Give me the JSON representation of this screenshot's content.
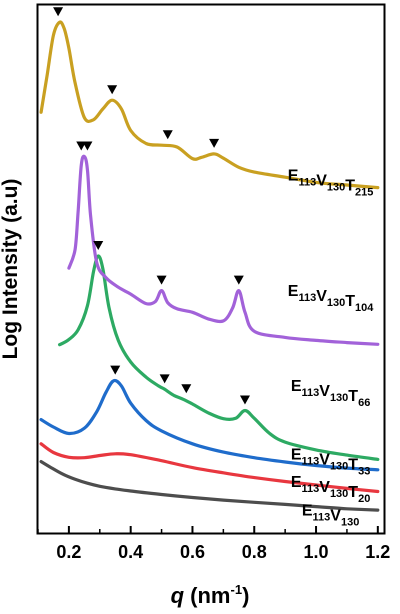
{
  "chart_data": {
    "type": "line",
    "xlabel": {
      "symbol": "q",
      "unit": "(nm",
      "unit_exp": "-1",
      "unit_close": ")"
    },
    "ylabel": "Log Intensity (a.u)",
    "xlim": [
      0.1,
      1.22
    ],
    "xticks": [
      "0.2",
      "0.4",
      "0.6",
      "0.8",
      "1.0",
      "1.2"
    ],
    "xtick_values": [
      0.2,
      0.4,
      0.6,
      0.8,
      1.0,
      1.2
    ],
    "y_scale": "arbitrary (offset curves)",
    "grid": false,
    "series": [
      {
        "name_parts": [
          [
            "E",
            ""
          ],
          [
            "113",
            "sub"
          ],
          [
            "V",
            ""
          ],
          [
            "130",
            "sub"
          ]
        ],
        "color": "#4d4d4d",
        "label_anchor": [
          0.95,
          4.0
        ],
        "points": [
          [
            0.11,
            16.5
          ],
          [
            0.14,
            15.2
          ],
          [
            0.18,
            13.6
          ],
          [
            0.22,
            12.4
          ],
          [
            0.26,
            11.5
          ],
          [
            0.3,
            10.8
          ],
          [
            0.35,
            10.2
          ],
          [
            0.4,
            9.7
          ],
          [
            0.5,
            8.9
          ],
          [
            0.6,
            8.2
          ],
          [
            0.7,
            7.6
          ],
          [
            0.8,
            7.1
          ],
          [
            0.9,
            6.6
          ],
          [
            1.0,
            6.1
          ],
          [
            1.1,
            5.6
          ],
          [
            1.2,
            5.3
          ]
        ],
        "peaks": []
      },
      {
        "name_parts": [
          [
            "E",
            ""
          ],
          [
            "113",
            "sub"
          ],
          [
            "V",
            ""
          ],
          [
            "130",
            "sub"
          ],
          [
            "T",
            ""
          ],
          [
            "20",
            "sub"
          ]
        ],
        "color": "#e8373f",
        "label_anchor": [
          0.95,
          10.6
        ],
        "points": [
          [
            0.11,
            20.6
          ],
          [
            0.15,
            18.6
          ],
          [
            0.2,
            17.5
          ],
          [
            0.25,
            17.4
          ],
          [
            0.3,
            17.9
          ],
          [
            0.35,
            18.3
          ],
          [
            0.4,
            18.1
          ],
          [
            0.5,
            16.7
          ],
          [
            0.6,
            15.1
          ],
          [
            0.7,
            13.9
          ],
          [
            0.8,
            12.8
          ],
          [
            0.9,
            11.9
          ],
          [
            1.0,
            11.1
          ],
          [
            1.1,
            10.3
          ],
          [
            1.2,
            9.6
          ]
        ],
        "peaks": []
      },
      {
        "name_parts": [
          [
            "E",
            ""
          ],
          [
            "113",
            "sub"
          ],
          [
            "V",
            ""
          ],
          [
            "130",
            "sub"
          ],
          [
            "T",
            ""
          ],
          [
            "33",
            "sub"
          ]
        ],
        "color": "#1f6ccb",
        "label_anchor": [
          0.95,
          17.0
        ],
        "points": [
          [
            0.11,
            26.2
          ],
          [
            0.15,
            24.5
          ],
          [
            0.2,
            23.0
          ],
          [
            0.25,
            24.2
          ],
          [
            0.29,
            28.0
          ],
          [
            0.32,
            32.5
          ],
          [
            0.345,
            35.2
          ],
          [
            0.37,
            34.0
          ],
          [
            0.4,
            30.0
          ],
          [
            0.45,
            26.0
          ],
          [
            0.5,
            23.6
          ],
          [
            0.6,
            20.6
          ],
          [
            0.7,
            18.7
          ],
          [
            0.8,
            17.4
          ],
          [
            0.9,
            16.4
          ],
          [
            1.0,
            15.6
          ],
          [
            1.1,
            15.0
          ],
          [
            1.2,
            14.6
          ]
        ],
        "peaks": [
          [
            0.35,
            35.2
          ]
        ]
      },
      {
        "name_parts": [
          [
            "E",
            ""
          ],
          [
            "113",
            "sub"
          ],
          [
            "V",
            ""
          ],
          [
            "130",
            "sub"
          ],
          [
            "T",
            ""
          ],
          [
            "66",
            "sub"
          ]
        ],
        "color": "#2daa63",
        "label_anchor": [
          0.95,
          32.8
        ],
        "points": [
          [
            0.17,
            43.5
          ],
          [
            0.2,
            44.7
          ],
          [
            0.23,
            47.0
          ],
          [
            0.26,
            52.5
          ],
          [
            0.28,
            60.5
          ],
          [
            0.295,
            64.0
          ],
          [
            0.31,
            61.0
          ],
          [
            0.33,
            52.0
          ],
          [
            0.36,
            44.5
          ],
          [
            0.4,
            39.5
          ],
          [
            0.45,
            36.0
          ],
          [
            0.49,
            34.0
          ],
          [
            0.51,
            33.2
          ],
          [
            0.54,
            31.8
          ],
          [
            0.57,
            30.9
          ],
          [
            0.6,
            29.8
          ],
          [
            0.65,
            27.8
          ],
          [
            0.7,
            26.4
          ],
          [
            0.74,
            26.5
          ],
          [
            0.77,
            28.3
          ],
          [
            0.8,
            26.5
          ],
          [
            0.85,
            23.0
          ],
          [
            0.9,
            21.0
          ],
          [
            1.0,
            19.2
          ],
          [
            1.1,
            18.0
          ],
          [
            1.2,
            17.0
          ]
        ],
        "peaks": [
          [
            0.295,
            64.0
          ],
          [
            0.51,
            33.2
          ],
          [
            0.58,
            30.9
          ],
          [
            0.77,
            28.3
          ]
        ]
      },
      {
        "name_parts": [
          [
            "E",
            ""
          ],
          [
            "113",
            "sub"
          ],
          [
            "V",
            ""
          ],
          [
            "130",
            "sub"
          ],
          [
            "T",
            ""
          ],
          [
            "104",
            "sub"
          ]
        ],
        "color": "#a262d9",
        "label_anchor": [
          0.95,
          54.8
        ],
        "points": [
          [
            0.2,
            61.2
          ],
          [
            0.22,
            65.5
          ],
          [
            0.23,
            74.5
          ],
          [
            0.24,
            85.0
          ],
          [
            0.25,
            87.0
          ],
          [
            0.26,
            84.0
          ],
          [
            0.27,
            73.5
          ],
          [
            0.29,
            62.5
          ],
          [
            0.32,
            59.0
          ],
          [
            0.36,
            56.8
          ],
          [
            0.4,
            55.2
          ],
          [
            0.45,
            53.0
          ],
          [
            0.48,
            53.5
          ],
          [
            0.5,
            56.0
          ],
          [
            0.52,
            53.2
          ],
          [
            0.55,
            51.8
          ],
          [
            0.6,
            51.0
          ],
          [
            0.65,
            49.5
          ],
          [
            0.7,
            49.0
          ],
          [
            0.73,
            52.0
          ],
          [
            0.75,
            56.0
          ],
          [
            0.77,
            51.0
          ],
          [
            0.8,
            46.6
          ],
          [
            0.9,
            45.2
          ],
          [
            1.0,
            44.5
          ],
          [
            1.1,
            44.0
          ],
          [
            1.2,
            43.6
          ]
        ],
        "peaks": [
          [
            0.24,
            87.0
          ],
          [
            0.26,
            87.0
          ],
          [
            0.5,
            56.0
          ],
          [
            0.75,
            56.0
          ]
        ]
      },
      {
        "name_parts": [
          [
            "E",
            ""
          ],
          [
            "113",
            "sub"
          ],
          [
            "V",
            ""
          ],
          [
            "130",
            "sub"
          ],
          [
            "T",
            ""
          ],
          [
            "215",
            "sub"
          ]
        ],
        "color": "#c9a021",
        "label_anchor": [
          0.95,
          81.5
        ],
        "points": [
          [
            0.11,
            97.2
          ],
          [
            0.13,
            106.0
          ],
          [
            0.15,
            115.0
          ],
          [
            0.17,
            118.0
          ],
          [
            0.185,
            116.5
          ],
          [
            0.2,
            112.0
          ],
          [
            0.22,
            104.0
          ],
          [
            0.25,
            96.0
          ],
          [
            0.28,
            95.5
          ],
          [
            0.31,
            98.0
          ],
          [
            0.34,
            100.0
          ],
          [
            0.37,
            98.0
          ],
          [
            0.4,
            93.0
          ],
          [
            0.45,
            90.0
          ],
          [
            0.5,
            89.6
          ],
          [
            0.55,
            89.2
          ],
          [
            0.6,
            86.5
          ],
          [
            0.63,
            86.8
          ],
          [
            0.67,
            87.6
          ],
          [
            0.7,
            86.6
          ],
          [
            0.75,
            84.5
          ],
          [
            0.8,
            83.4
          ],
          [
            0.9,
            82.2
          ],
          [
            1.0,
            81.0
          ],
          [
            1.1,
            80.4
          ],
          [
            1.2,
            79.8
          ]
        ],
        "peaks": [
          [
            0.165,
            118.0
          ],
          [
            0.34,
            100.0
          ],
          [
            0.52,
            89.6
          ],
          [
            0.67,
            87.6
          ]
        ]
      }
    ]
  }
}
